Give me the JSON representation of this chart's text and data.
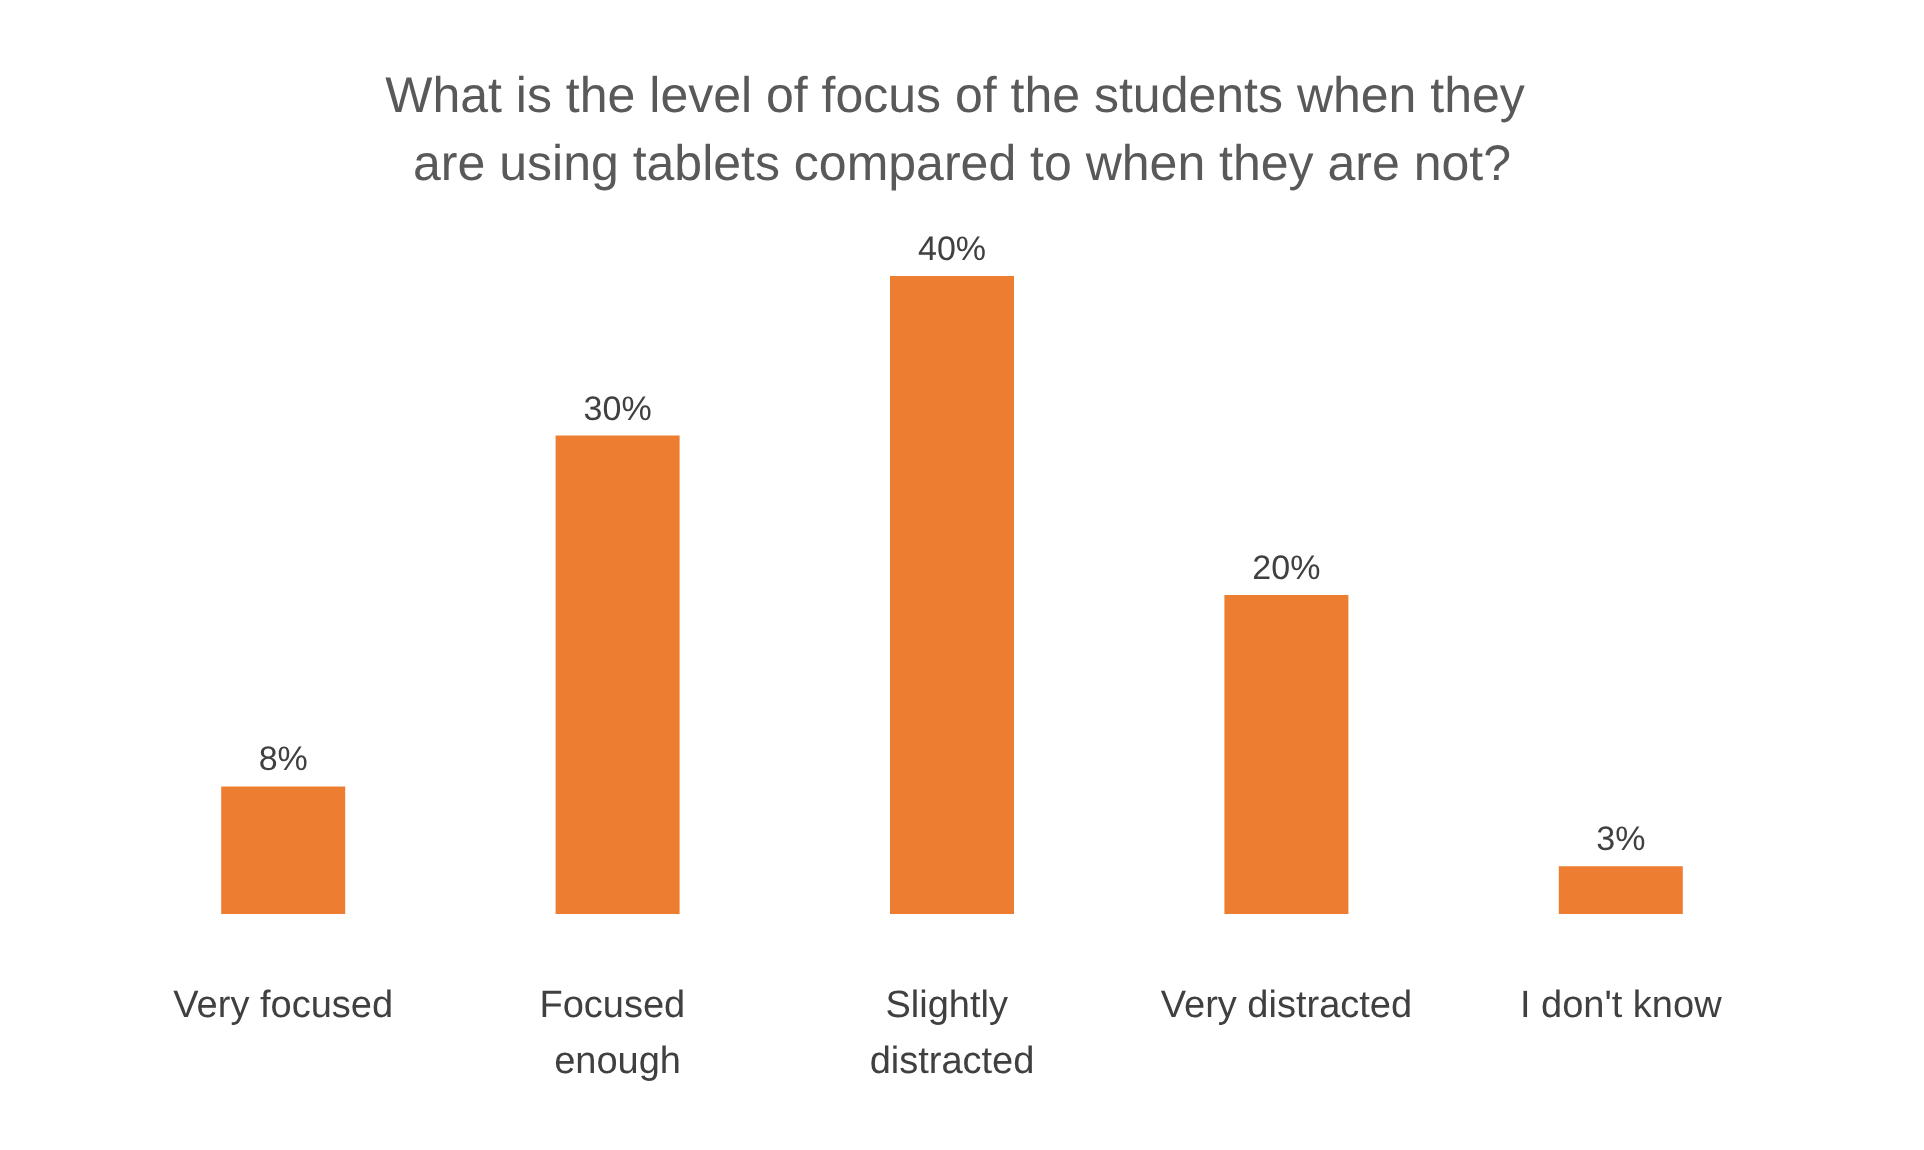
{
  "chart_data": {
    "type": "bar",
    "title": "What is the level of focus of the students when they are using tablets compared to when they are not?",
    "categories": [
      "Very focused",
      "Focused enough",
      "Slightly distracted",
      "Very distracted",
      "I don't know"
    ],
    "values": [
      8,
      30,
      40,
      20,
      3
    ],
    "value_labels": [
      "8%",
      "30%",
      "40%",
      "20%",
      "3%"
    ],
    "color": "#ed7d31",
    "grid": false
  }
}
